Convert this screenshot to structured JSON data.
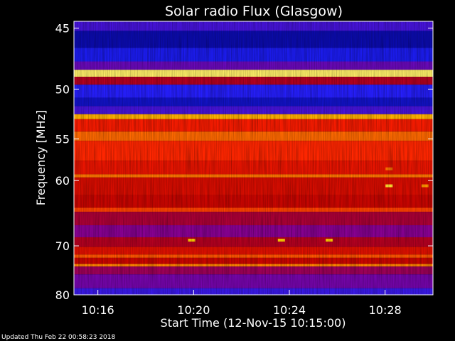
{
  "chart_data": {
    "type": "heatmap",
    "title": "Solar radio Flux (Glasgow)",
    "xlabel": "Start Time (12-Nov-15 10:15:00)",
    "ylabel": "Frequency [MHz]",
    "x_ticks": [
      "10:16",
      "10:20",
      "10:24",
      "10:28"
    ],
    "y_ticks": [
      "45",
      "50",
      "55",
      "60",
      "70",
      "80"
    ],
    "y_scale": "reciprocal",
    "xlim": [
      "10:15:00",
      "10:30:00"
    ],
    "ylim_mhz": [
      80,
      44.5
    ],
    "colormap": [
      "#000080",
      "#2020ff",
      "#8000a0",
      "#c00000",
      "#ff2000",
      "#ff8000",
      "#ffd000",
      "#ffffa0"
    ],
    "bands": [
      {
        "f_from": 44.5,
        "f_to": 45.2,
        "level": 0.2
      },
      {
        "f_from": 45.2,
        "f_to": 46.5,
        "level": 0.05
      },
      {
        "f_from": 46.5,
        "f_to": 47.6,
        "level": 0.12
      },
      {
        "f_from": 47.6,
        "f_to": 48.3,
        "level": 0.25
      },
      {
        "f_from": 48.3,
        "f_to": 48.9,
        "level": 0.95
      },
      {
        "f_from": 48.9,
        "f_to": 49.6,
        "level": 0.4
      },
      {
        "f_from": 49.6,
        "f_to": 50.8,
        "level": 0.15
      },
      {
        "f_from": 50.8,
        "f_to": 51.6,
        "level": 0.08
      },
      {
        "f_from": 51.6,
        "f_to": 52.4,
        "level": 0.2
      },
      {
        "f_from": 52.4,
        "f_to": 52.9,
        "level": 0.8
      },
      {
        "f_from": 52.9,
        "f_to": 54.2,
        "level": 0.55
      },
      {
        "f_from": 54.2,
        "f_to": 55.2,
        "level": 0.68
      },
      {
        "f_from": 55.2,
        "f_to": 57.5,
        "level": 0.58
      },
      {
        "f_from": 57.5,
        "f_to": 59.2,
        "level": 0.52
      },
      {
        "f_from": 59.2,
        "f_to": 59.6,
        "level": 0.7
      },
      {
        "f_from": 59.6,
        "f_to": 62.0,
        "level": 0.48
      },
      {
        "f_from": 62.0,
        "f_to": 63.8,
        "level": 0.45
      },
      {
        "f_from": 63.8,
        "f_to": 64.4,
        "level": 0.62
      },
      {
        "f_from": 64.4,
        "f_to": 66.5,
        "level": 0.38
      },
      {
        "f_from": 66.5,
        "f_to": 68.5,
        "level": 0.3
      },
      {
        "f_from": 68.5,
        "f_to": 70.2,
        "level": 0.4
      },
      {
        "f_from": 70.2,
        "f_to": 71.6,
        "level": 0.5
      },
      {
        "f_from": 71.6,
        "f_to": 72.2,
        "level": 0.65
      },
      {
        "f_from": 72.2,
        "f_to": 73.4,
        "level": 0.45
      },
      {
        "f_from": 73.4,
        "f_to": 73.9,
        "level": 0.72
      },
      {
        "f_from": 73.9,
        "f_to": 75.5,
        "level": 0.35
      },
      {
        "f_from": 75.5,
        "f_to": 78.5,
        "level": 0.27
      },
      {
        "f_from": 78.5,
        "f_to": 80.0,
        "level": 0.18
      }
    ],
    "bursts": [
      {
        "time": "10:19:55",
        "freq": 69.0,
        "level": 0.85
      },
      {
        "time": "10:23:40",
        "freq": 69.0,
        "level": 0.85
      },
      {
        "time": "10:25:40",
        "freq": 69.0,
        "level": 0.85
      },
      {
        "time": "10:28:10",
        "freq": 60.7,
        "level": 0.9
      },
      {
        "time": "10:29:40",
        "freq": 60.7,
        "level": 0.75
      },
      {
        "time": "10:28:10",
        "freq": 58.5,
        "level": 0.7
      }
    ]
  },
  "footer": {
    "updated": "Updated Thu Feb 22 00:58:23 2018"
  }
}
